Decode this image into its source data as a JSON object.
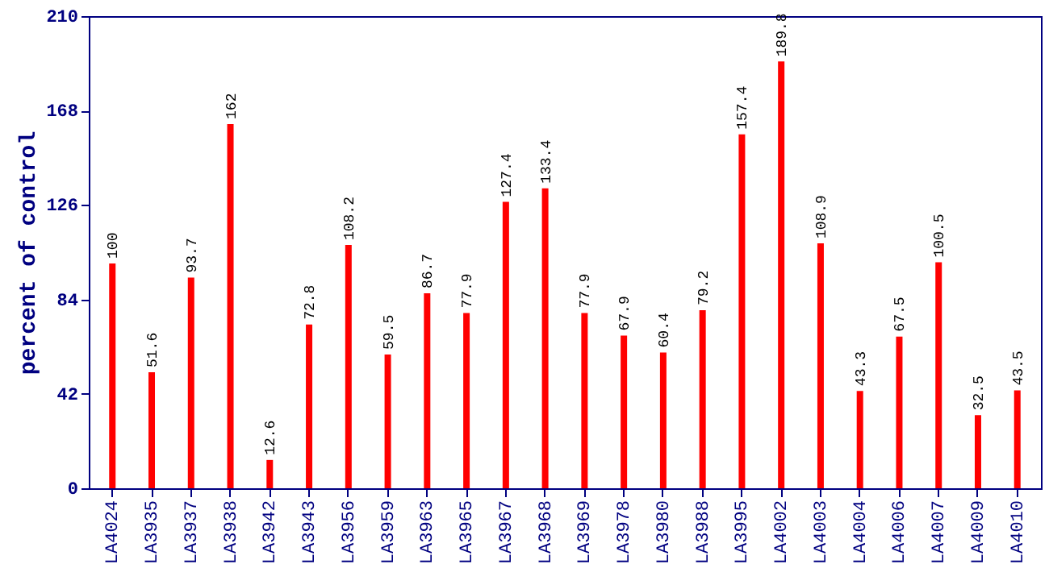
{
  "chart_data": {
    "type": "bar",
    "ylabel": "percent of control",
    "categories": [
      "LA4024",
      "LA3935",
      "LA3937",
      "LA3938",
      "LA3942",
      "LA3943",
      "LA3956",
      "LA3959",
      "LA3963",
      "LA3965",
      "LA3967",
      "LA3968",
      "LA3969",
      "LA3978",
      "LA3980",
      "LA3988",
      "LA3995",
      "LA4002",
      "LA4003",
      "LA4004",
      "LA4006",
      "LA4007",
      "LA4009",
      "LA4010"
    ],
    "values": [
      100,
      51.6,
      93.7,
      162,
      12.6,
      72.8,
      108.2,
      59.5,
      86.7,
      77.9,
      127.4,
      133.4,
      77.9,
      67.9,
      60.4,
      79.2,
      157.4,
      189.8,
      108.9,
      43.3,
      67.5,
      100.5,
      32.5,
      43.5
    ],
    "color": "#ff0000",
    "ylim": [
      0,
      210
    ],
    "yticks": [
      0,
      42,
      84,
      126,
      168,
      210
    ],
    "grid": false,
    "data_labels": true
  }
}
